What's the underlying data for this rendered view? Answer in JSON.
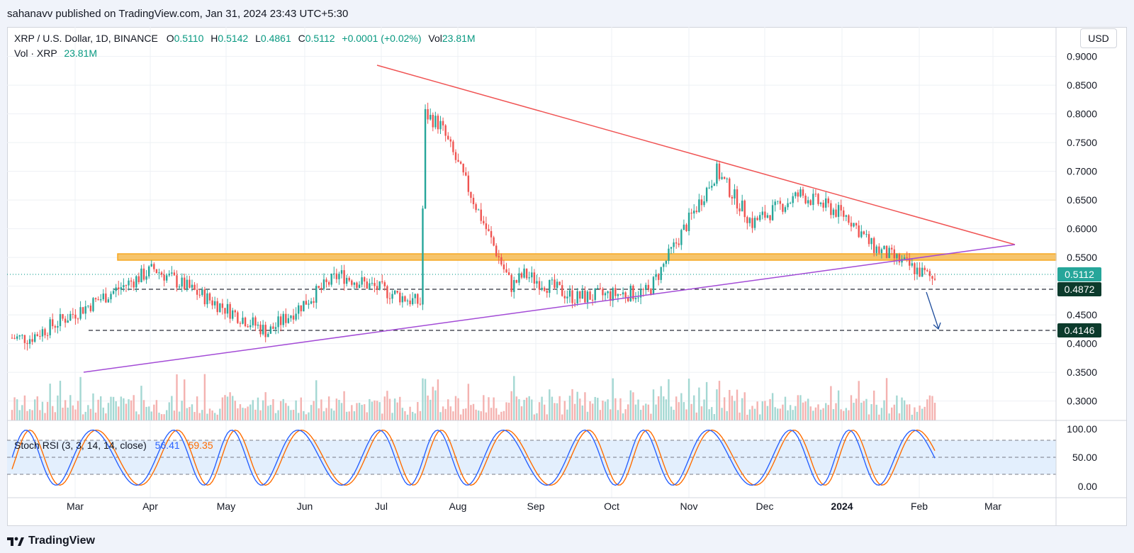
{
  "header": {
    "publisher": "sahanavv published on TradingView.com, Jan 31, 2024 23:43 UTC+5:30"
  },
  "legend": {
    "symbol": "XRP / U.S. Dollar, 1D, BINANCE",
    "o_label": "O",
    "o_val": "0.5110",
    "h_label": "H",
    "h_val": "0.5142",
    "l_label": "L",
    "l_val": "0.4861",
    "c_label": "C",
    "c_val": "0.5112",
    "change": "+0.0001 (+0.02%)",
    "vol_label": "Vol",
    "vol_val": "23.81M",
    "vol_line_label": "Vol · XRP",
    "vol_line_val": "23.81M"
  },
  "currency_button": "USD",
  "stoch": {
    "label": "Stoch RSI (3, 3, 14, 14, close)",
    "k_val": "56.41",
    "d_val": "59.35",
    "ticks": [
      "100.00",
      "50.00",
      "0.00"
    ]
  },
  "footer": {
    "brand": "TradingView"
  },
  "chart_data": {
    "type": "candlestick",
    "symbol": "XRP / U.S. Dollar, 1D, BINANCE",
    "price_axis_ticks": [
      "0.9000",
      "0.8500",
      "0.8000",
      "0.7500",
      "0.7000",
      "0.6500",
      "0.6000",
      "0.5500",
      "0.5000",
      "0.4500",
      "0.4000",
      "0.3500",
      "0.3000"
    ],
    "time_axis_labels": [
      "Mar",
      "Apr",
      "May",
      "Jun",
      "Jul",
      "Aug",
      "Sep",
      "Oct",
      "Nov",
      "Dec",
      "2024",
      "Feb",
      "Mar"
    ],
    "price_labels": {
      "current": "0.5112",
      "support_1": "0.4872",
      "support_2": "0.4146"
    },
    "key_prices": [
      {
        "time": "2023-02-08",
        "price": 0.41
      },
      {
        "time": "2023-03-29",
        "price": 0.53
      },
      {
        "time": "2023-05-13",
        "price": 0.42
      },
      {
        "time": "2023-06-10",
        "price": 0.52
      },
      {
        "time": "2023-07-12",
        "price": 0.47
      },
      {
        "time": "2023-07-14",
        "price": 0.8
      },
      {
        "time": "2023-07-20",
        "price": 0.78
      },
      {
        "time": "2023-08-17",
        "price": 0.5
      },
      {
        "time": "2023-08-22",
        "price": 0.52
      },
      {
        "time": "2023-09-11",
        "price": 0.48
      },
      {
        "time": "2023-10-10",
        "price": 0.49
      },
      {
        "time": "2023-11-06",
        "price": 0.7
      },
      {
        "time": "2023-11-20",
        "price": 0.61
      },
      {
        "time": "2023-12-09",
        "price": 0.66
      },
      {
        "time": "2023-12-28",
        "price": 0.62
      },
      {
        "time": "2024-01-06",
        "price": 0.57
      },
      {
        "time": "2024-01-31",
        "price": 0.5112
      }
    ],
    "resistance_zone": [
      0.538,
      0.546
    ],
    "trendlines": [
      {
        "name": "descending resistance",
        "color": "#f05454",
        "from": {
          "time": "2023-07-06",
          "price": 0.87
        },
        "to": {
          "time": "2024-03-13",
          "price": 0.563
        }
      },
      {
        "name": "ascending support",
        "color": "#a34bd6",
        "from": {
          "time": "2023-03-01",
          "price": 0.343
        },
        "to": {
          "time": "2024-03-13",
          "price": 0.563
        }
      }
    ],
    "horizontal_levels": [
      0.4872,
      0.4146
    ],
    "projection_arrow": {
      "from_price": 0.48,
      "to_price": 0.415
    },
    "colors": {
      "up": "#26a69a",
      "down": "#ef5350",
      "zone": "#f7a823",
      "stoch_k": "#2962ff",
      "stoch_d": "#ff6d00"
    }
  }
}
